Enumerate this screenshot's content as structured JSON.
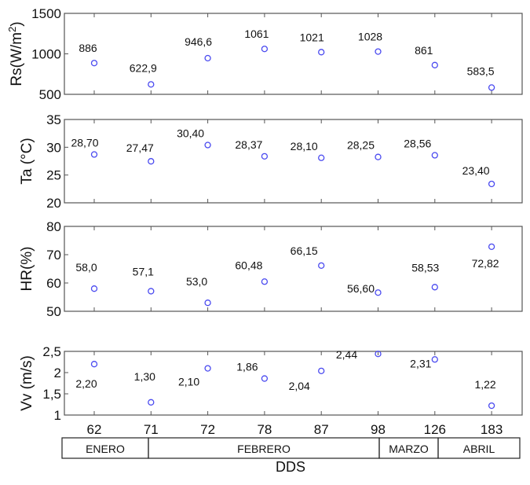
{
  "chart_data": [
    {
      "type": "scatter",
      "ylabel": "Rs(W/m²)",
      "ylabel_base": "Rs(W/m",
      "ylabel_sup": "2",
      "ylabel_end": ")",
      "ylim": [
        500,
        1500
      ],
      "yticks": [
        "500",
        "1000",
        "1500"
      ],
      "ytick_values": [
        500,
        1000,
        1500
      ],
      "categories": [
        "62",
        "71",
        "72",
        "78",
        "87",
        "98",
        "126",
        "183"
      ],
      "values": [
        886,
        622.9,
        946.6,
        1061,
        1021,
        1028,
        861,
        583.5
      ],
      "labels": [
        "886",
        "622,9",
        "946,6",
        "1061",
        "1021",
        "1028",
        "861",
        "583,5"
      ]
    },
    {
      "type": "scatter",
      "ylabel": "Ta (°C)",
      "ylim": [
        20,
        35
      ],
      "yticks": [
        "20",
        "25",
        "30",
        "35"
      ],
      "ytick_values": [
        20,
        25,
        30,
        35
      ],
      "categories": [
        "62",
        "71",
        "72",
        "78",
        "87",
        "98",
        "126",
        "183"
      ],
      "values": [
        28.7,
        27.47,
        30.4,
        28.37,
        28.1,
        28.25,
        28.56,
        23.4
      ],
      "labels": [
        "28,70",
        "27,47",
        "30,40",
        "28,37",
        "28,10",
        "28,25",
        "28,56",
        "23,40"
      ]
    },
    {
      "type": "scatter",
      "ylabel": "HR(%)",
      "ylim": [
        50,
        80
      ],
      "yticks": [
        "50",
        "60",
        "70",
        "80"
      ],
      "ytick_values": [
        50,
        60,
        70,
        80
      ],
      "categories": [
        "62",
        "71",
        "72",
        "78",
        "87",
        "98",
        "126",
        "183"
      ],
      "values": [
        58.0,
        57.1,
        53.0,
        60.48,
        66.15,
        56.6,
        58.53,
        72.82
      ],
      "labels": [
        "58,0",
        "57,1",
        "53,0",
        "60,48",
        "66,15",
        "56,60",
        "58,53",
        "72,82"
      ]
    },
    {
      "type": "scatter",
      "ylabel": "Vv (m/s)",
      "ylim": [
        1,
        2.5
      ],
      "yticks": [
        "1",
        "1,5",
        "2",
        "2,5"
      ],
      "ytick_values": [
        1,
        1.5,
        2,
        2.5
      ],
      "categories": [
        "62",
        "71",
        "72",
        "78",
        "87",
        "98",
        "126",
        "183"
      ],
      "values": [
        2.2,
        1.3,
        2.1,
        1.86,
        2.04,
        2.44,
        2.31,
        1.22
      ],
      "labels": [
        "2,20",
        "1,30",
        "2,10",
        "1,86",
        "2,04",
        "2,44",
        "2,31",
        "1,22"
      ]
    }
  ],
  "xlabel": "DDS",
  "xticks": [
    "62",
    "71",
    "72",
    "78",
    "87",
    "98",
    "126",
    "183"
  ],
  "months": [
    {
      "label": "ENERO",
      "span": [
        0,
        1
      ]
    },
    {
      "label": "FEBRERO",
      "span": [
        1,
        5
      ]
    },
    {
      "label": "MARZO",
      "span": [
        5,
        6
      ]
    },
    {
      "label": "ABRIL",
      "span": [
        6,
        8
      ]
    }
  ],
  "marker_color": "#4a4af0"
}
